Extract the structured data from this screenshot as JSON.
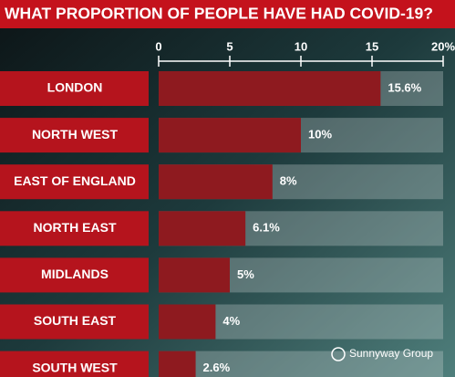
{
  "chart_data": {
    "type": "hbar",
    "title": "WHAT PROPORTION OF PEOPLE HAVE HAD COVID-19?",
    "categories": [
      "LONDON",
      "NORTH WEST",
      "EAST OF ENGLAND",
      "NORTH EAST",
      "MIDLANDS",
      "SOUTH EAST",
      "SOUTH WEST"
    ],
    "values": [
      15.6,
      10,
      8,
      6.1,
      5,
      4,
      2.6
    ],
    "value_labels": [
      "15.6%",
      "10%",
      "8%",
      "6.1%",
      "5%",
      "4%",
      "2.6%"
    ],
    "color": "#8e1a1f",
    "xlim": [
      0,
      20
    ],
    "xticks": [
      0,
      5,
      10,
      15,
      {
        "value": 20,
        "label": "20%"
      }
    ]
  },
  "watermark": "Sunnyway Group"
}
